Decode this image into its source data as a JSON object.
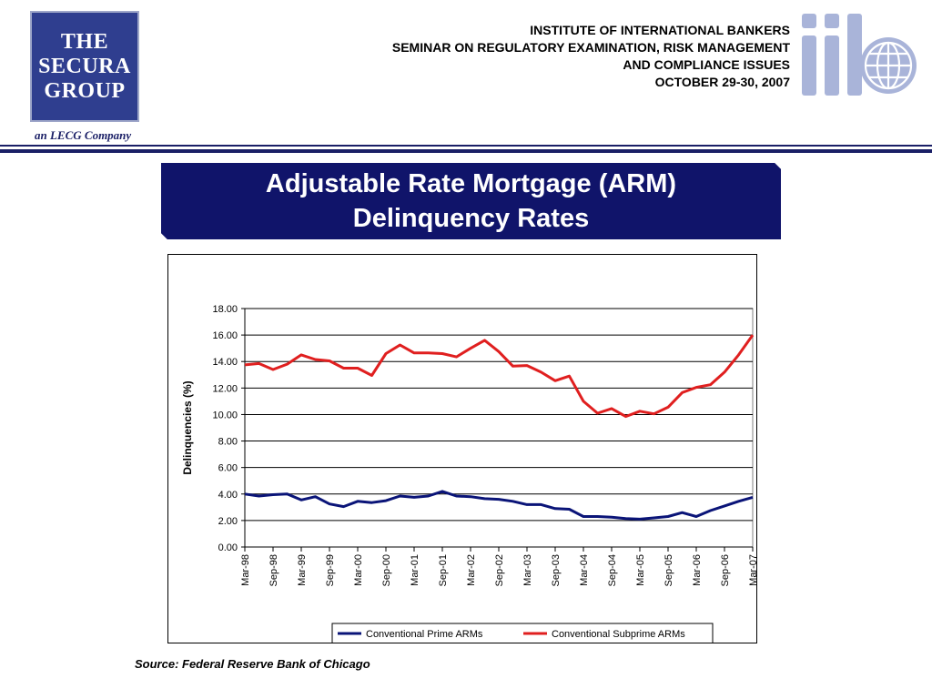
{
  "header": {
    "logo_lines": [
      "THE",
      "SECURA",
      "GROUP"
    ],
    "tagline": "an LECG Company",
    "org_lines": [
      "INSTITUTE OF INTERNATIONAL BANKERS",
      "SEMINAR ON REGULATORY EXAMINATION, RISK MANAGEMENT",
      "AND COMPLIANCE ISSUES",
      "OCTOBER 29-30, 2007"
    ],
    "iib_logo_text": "iib"
  },
  "slide": {
    "title": "Adjustable Rate Mortgage (ARM)\nDelinquency Rates",
    "source": "Source: Federal Reserve Bank of Chicago"
  },
  "colors": {
    "navy": "#10146a",
    "prime_series": "#0a1478",
    "subprime_series": "#e01f1f",
    "iib_logo": "#a9b4d9"
  },
  "chart_data": {
    "type": "line",
    "ylabel": "Delinquencies (%)",
    "xlabel": "",
    "ylim": [
      0,
      18
    ],
    "yticks": [
      "0.00",
      "2.00",
      "4.00",
      "6.00",
      "8.00",
      "10.00",
      "12.00",
      "14.00",
      "16.00",
      "18.00"
    ],
    "x_tick_labels": [
      "Mar-98",
      "Sep-98",
      "Mar-99",
      "Sep-99",
      "Mar-00",
      "Sep-00",
      "Mar-01",
      "Sep-01",
      "Mar-02",
      "Sep-02",
      "Mar-03",
      "Sep-03",
      "Mar-04",
      "Sep-04",
      "Mar-05",
      "Sep-05",
      "Mar-06",
      "Sep-06",
      "Mar-07"
    ],
    "grid": "horizontal",
    "legend": "bottom",
    "x": [
      "Mar-98",
      "Jun-98",
      "Sep-98",
      "Dec-98",
      "Mar-99",
      "Jun-99",
      "Sep-99",
      "Dec-99",
      "Mar-00",
      "Jun-00",
      "Sep-00",
      "Dec-00",
      "Mar-01",
      "Jun-01",
      "Sep-01",
      "Dec-01",
      "Mar-02",
      "Jun-02",
      "Sep-02",
      "Dec-02",
      "Mar-03",
      "Jun-03",
      "Sep-03",
      "Dec-03",
      "Mar-04",
      "Jun-04",
      "Sep-04",
      "Dec-04",
      "Mar-05",
      "Jun-05",
      "Sep-05",
      "Dec-05",
      "Mar-06",
      "Jun-06",
      "Sep-06",
      "Dec-06",
      "Mar-07"
    ],
    "series": [
      {
        "name": "Conventional Prime ARMs",
        "values": [
          4.0,
          3.85,
          3.95,
          4.0,
          3.55,
          3.8,
          3.25,
          3.05,
          3.45,
          3.35,
          3.5,
          3.85,
          3.75,
          3.85,
          4.2,
          3.85,
          3.8,
          3.65,
          3.6,
          3.45,
          3.2,
          3.2,
          2.9,
          2.85,
          2.3,
          2.3,
          2.25,
          2.15,
          2.1,
          2.2,
          2.3,
          2.6,
          2.3,
          2.75,
          3.1,
          3.45,
          3.75
        ]
      },
      {
        "name": "Conventional Subprime ARMs",
        "values": [
          13.75,
          13.85,
          13.4,
          13.8,
          14.5,
          14.15,
          14.05,
          13.5,
          13.5,
          12.95,
          14.6,
          15.25,
          14.65,
          14.65,
          14.6,
          14.35,
          15.0,
          15.6,
          14.75,
          13.65,
          13.7,
          13.2,
          12.55,
          12.9,
          11.0,
          10.1,
          10.45,
          9.85,
          10.25,
          10.05,
          10.55,
          11.65,
          12.05,
          12.25,
          13.2,
          14.5,
          16.0
        ]
      }
    ]
  }
}
